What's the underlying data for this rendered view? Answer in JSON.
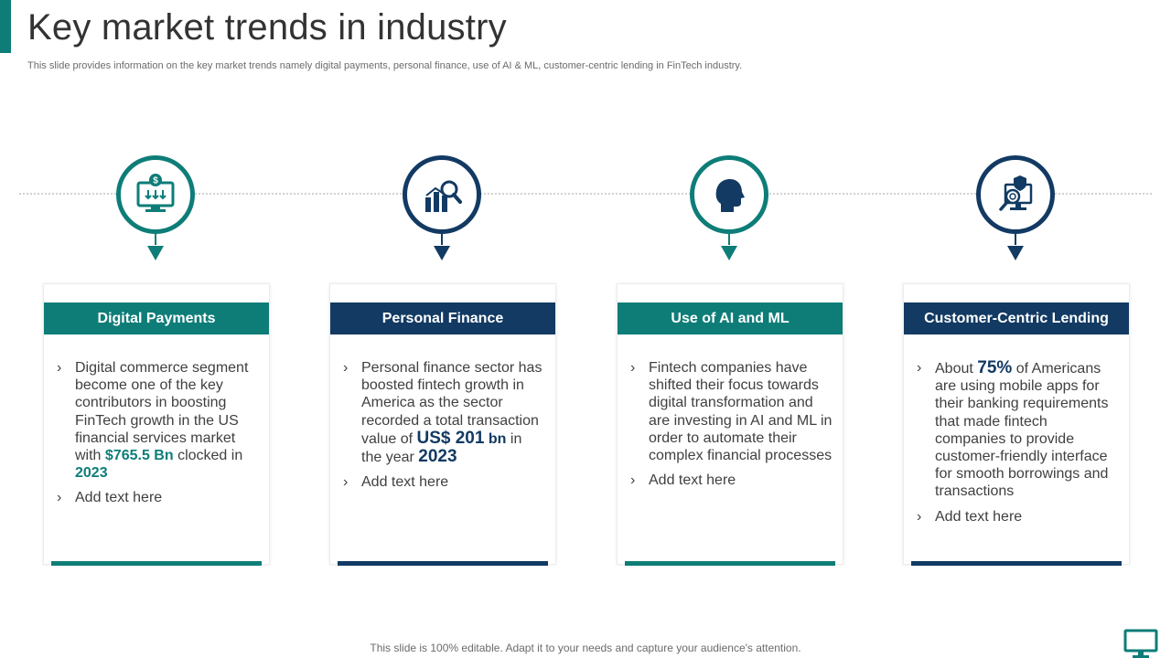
{
  "header": {
    "title": "Key market trends in industry",
    "subtitle": "This slide provides information on the key market trends namely digital payments, personal finance, use of AI & ML, customer-centric lending in FinTech industry."
  },
  "colors": {
    "teal": "#0e7d78",
    "navy": "#123a63"
  },
  "cards": [
    {
      "icon": "monitor-dollar-icon",
      "heading": "Digital Payments",
      "bullet1": {
        "a": "Digital commerce segment become one of the key contributors in boosting FinTech growth in the US financial services market with ",
        "b": "$765.5 Bn",
        "c": " clocked in ",
        "d": "2023"
      },
      "bullet2": "Add text here"
    },
    {
      "icon": "chart-magnifier-icon",
      "heading": "Personal Finance",
      "bullet1": {
        "a": "Personal finance sector has boosted fintech growth in America as the sector recorded a total transaction value of ",
        "b": "US$ 201",
        "b2": " bn",
        "c": " in the year ",
        "d": "2023"
      },
      "bullet2": "Add text here"
    },
    {
      "icon": "human-head-icon",
      "heading": "Use of AI and ML",
      "bullet1": {
        "a": "Fintech companies have shifted their focus towards digital transformation and are investing in AI and ML in order to automate their complex financial processes"
      },
      "bullet2": "Add text here"
    },
    {
      "icon": "shield-computer-icon",
      "heading": "Customer-Centric  Lending",
      "bullet1": {
        "a": "About ",
        "b": "75%",
        "c": " of Americans are using mobile apps for their banking requirements that made fintech companies to provide customer-friendly  interface for smooth borrowings and transactions"
      },
      "bullet2": "Add text here"
    }
  ],
  "footer": {
    "text": "This slide is 100% editable. Adapt it to your needs and capture your audience's attention."
  }
}
